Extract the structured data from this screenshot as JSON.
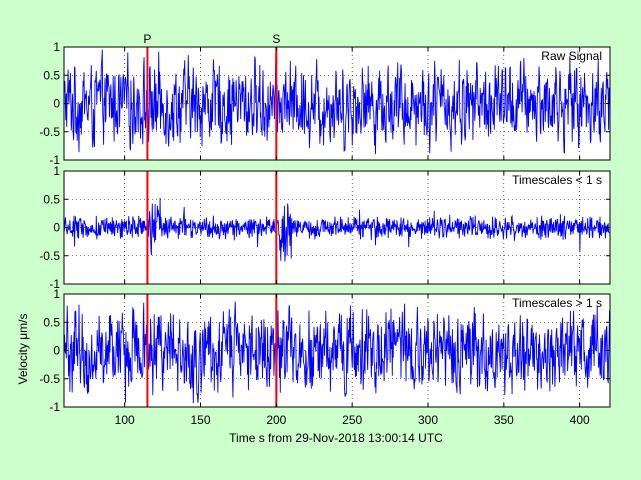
{
  "chart_data": {
    "type": "line",
    "xlabel": "Time s from 29-Nov-2018 13:00:14 UTC",
    "ylabel": "Velocity μm/s",
    "xlim": [
      60,
      420
    ],
    "xticks": [
      100,
      150,
      200,
      250,
      300,
      350,
      400
    ],
    "grid": true,
    "line_color": "#0000ff",
    "marker_color": "#ff0000",
    "markers": [
      {
        "label": "P",
        "x": 115
      },
      {
        "label": "S",
        "x": 200
      }
    ],
    "panels": [
      {
        "label": "Raw Signal",
        "ylim": [
          -1,
          1
        ],
        "yticks": [
          -1,
          -0.5,
          0,
          0.5,
          1
        ],
        "amplitude": 0.9
      },
      {
        "label": "Timescales < 1 s",
        "ylim": [
          -1,
          1
        ],
        "yticks": [
          -1,
          -0.5,
          0,
          0.5,
          1
        ],
        "amplitude": 0.45
      },
      {
        "label": "Timescales > 1 s",
        "ylim": [
          -1,
          1
        ],
        "yticks": [
          -1,
          -0.5,
          0,
          0.5,
          1
        ],
        "amplitude": 0.9
      }
    ]
  }
}
